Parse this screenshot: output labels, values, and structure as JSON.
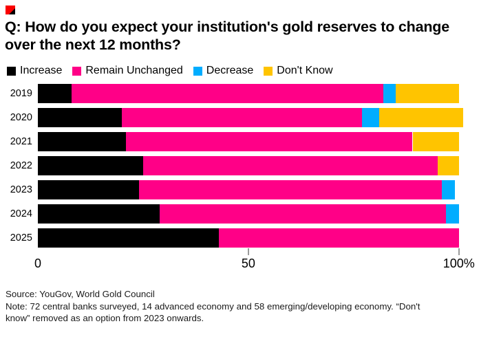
{
  "brand": {
    "mark_color": "#fa0000"
  },
  "header": {
    "title_lines": [
      "Q: How do you expect your institution's gold reserves to change",
      "over the next 12 months?"
    ]
  },
  "legend": {
    "items": [
      {
        "label": "Increase",
        "color": "#000000"
      },
      {
        "label": "Remain Unchanged",
        "color": "#ff0087"
      },
      {
        "label": "Decrease",
        "color": "#00adff"
      },
      {
        "label": "Don't Know",
        "color": "#ffc400"
      }
    ]
  },
  "chart_data": {
    "type": "bar",
    "orientation": "horizontal",
    "stacked": true,
    "title": "Q: How do you expect your institution's gold reserves to change over the next 12 months?",
    "categories": [
      "2019",
      "2020",
      "2021",
      "2022",
      "2023",
      "2024",
      "2025"
    ],
    "series": [
      {
        "name": "Increase",
        "color": "#000000",
        "values": [
          8,
          20,
          21,
          25,
          24,
          29,
          43
        ]
      },
      {
        "name": "Remain Unchanged",
        "color": "#ff0087",
        "values": [
          74,
          57,
          68,
          70,
          72,
          68,
          57
        ]
      },
      {
        "name": "Decrease",
        "color": "#00adff",
        "values": [
          3,
          4,
          0,
          0,
          3,
          3,
          0
        ]
      },
      {
        "name": "Don't Know",
        "color": "#ffc400",
        "values": [
          15,
          20,
          11,
          5,
          0,
          0,
          0
        ]
      }
    ],
    "xlim": [
      0,
      100
    ],
    "x_ticks": [
      {
        "value": 0,
        "label": "0"
      },
      {
        "value": 50,
        "label": "50"
      },
      {
        "value": 100,
        "label": "100%"
      }
    ],
    "tick_marks": [
      50,
      100
    ],
    "grid": false,
    "legend_position": "top"
  },
  "footer": {
    "source": "Source: YouGov, World Gold Council",
    "note_lines": [
      "Note: 72 central banks surveyed, 14 advanced economy and 58 emerging/developing economy. “Don't",
      "know” removed as an option from 2023 onwards."
    ]
  }
}
